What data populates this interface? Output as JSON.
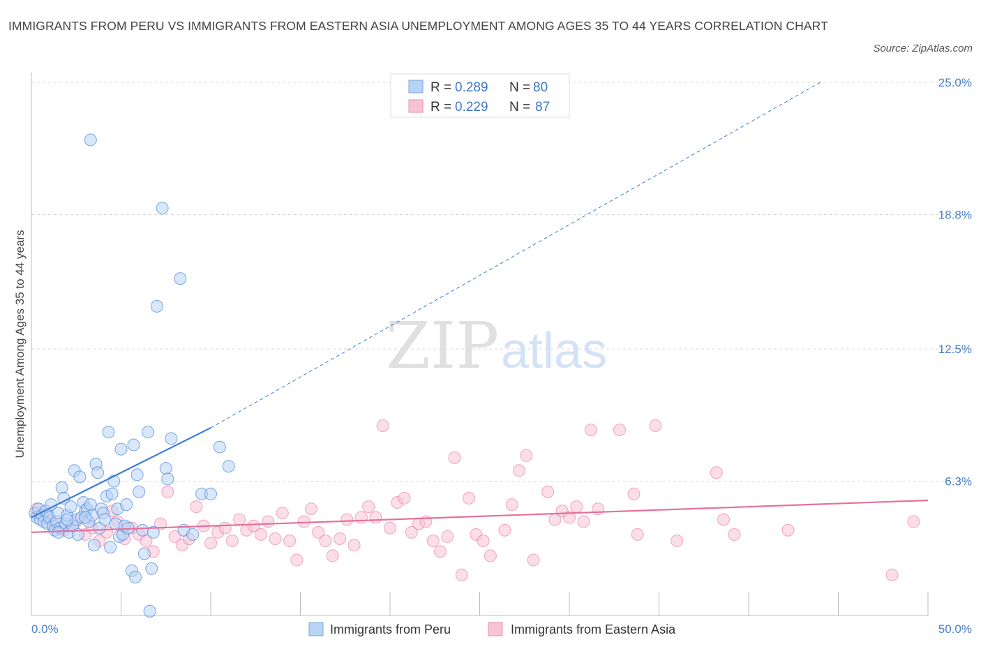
{
  "title": "IMMIGRANTS FROM PERU VS IMMIGRANTS FROM EASTERN ASIA UNEMPLOYMENT AMONG AGES 35 TO 44 YEARS CORRELATION CHART",
  "source": "Source: ZipAtlas.com",
  "watermark": {
    "zip": "ZIP",
    "atlas": "atlas"
  },
  "colors": {
    "peru": "#3a7bd5",
    "peru_fill": "#b9d3f5",
    "asia": "#e76f9a",
    "asia_fill": "#f7c2d3",
    "tick": "#4a7fc7",
    "grid": "#d9d9d9"
  },
  "legend": {
    "rows": [
      {
        "r_label": "R = ",
        "r_value": "0.289",
        "n_label": "N = ",
        "n_value": "80"
      },
      {
        "r_label": "R = ",
        "r_value": "0.229",
        "n_label": "N = ",
        "n_value": "87"
      }
    ]
  },
  "chart_data": {
    "type": "scatter",
    "title": "IMMIGRANTS FROM PERU VS IMMIGRANTS FROM EASTERN ASIA UNEMPLOYMENT AMONG AGES 35 TO 44 YEARS CORRELATION CHART",
    "xlabel": "",
    "ylabel": "Unemployment Among Ages 35 to 44 years",
    "xlim": [
      0,
      50
    ],
    "ylim": [
      0,
      25
    ],
    "x_tick_labels": [
      "0.0%",
      "50.0%"
    ],
    "y_ticks": [
      6.3,
      12.5,
      18.8,
      25.0
    ],
    "y_tick_labels": [
      "6.3%",
      "12.5%",
      "18.8%",
      "25.0%"
    ],
    "grid": "horizontal dashed",
    "legend_position": "top-center",
    "series": [
      {
        "name": "Immigrants from Peru",
        "r": 0.289,
        "n": 80,
        "trend": {
          "x": [
            0,
            10
          ],
          "y": [
            4.6,
            8.8
          ],
          "extended_x": [
            10,
            44
          ],
          "extended_y": [
            8.8,
            25
          ]
        },
        "points": [
          [
            0.2,
            4.8
          ],
          [
            0.3,
            4.6
          ],
          [
            0.4,
            5.0
          ],
          [
            0.5,
            4.5
          ],
          [
            0.6,
            4.7
          ],
          [
            0.7,
            4.4
          ],
          [
            0.8,
            4.9
          ],
          [
            0.9,
            4.3
          ],
          [
            1.0,
            4.6
          ],
          [
            1.1,
            5.2
          ],
          [
            1.2,
            4.2
          ],
          [
            1.3,
            4.0
          ],
          [
            1.4,
            4.4
          ],
          [
            1.5,
            4.8
          ],
          [
            1.6,
            4.1
          ],
          [
            1.7,
            6.0
          ],
          [
            1.8,
            5.5
          ],
          [
            1.9,
            4.3
          ],
          [
            2.0,
            4.7
          ],
          [
            2.1,
            3.9
          ],
          [
            2.2,
            5.1
          ],
          [
            2.3,
            4.2
          ],
          [
            2.4,
            6.8
          ],
          [
            2.5,
            4.5
          ],
          [
            2.6,
            3.8
          ],
          [
            2.7,
            6.5
          ],
          [
            2.8,
            4.6
          ],
          [
            2.9,
            5.3
          ],
          [
            3.0,
            4.9
          ],
          [
            3.1,
            5.0
          ],
          [
            3.2,
            4.4
          ],
          [
            3.3,
            5.2
          ],
          [
            3.4,
            4.7
          ],
          [
            3.5,
            3.3
          ],
          [
            3.6,
            7.1
          ],
          [
            3.7,
            6.7
          ],
          [
            3.8,
            4.1
          ],
          [
            3.9,
            5.0
          ],
          [
            4.0,
            4.8
          ],
          [
            4.1,
            4.5
          ],
          [
            4.2,
            5.6
          ],
          [
            4.3,
            8.6
          ],
          [
            4.4,
            3.2
          ],
          [
            4.5,
            5.7
          ],
          [
            4.6,
            6.3
          ],
          [
            4.7,
            4.3
          ],
          [
            4.8,
            5.0
          ],
          [
            4.9,
            3.7
          ],
          [
            5.0,
            7.8
          ],
          [
            5.1,
            3.8
          ],
          [
            5.2,
            4.2
          ],
          [
            5.3,
            5.2
          ],
          [
            5.4,
            4.1
          ],
          [
            5.6,
            2.1
          ],
          [
            5.7,
            8.0
          ],
          [
            5.8,
            1.8
          ],
          [
            5.9,
            6.6
          ],
          [
            6.0,
            5.8
          ],
          [
            6.2,
            4.0
          ],
          [
            6.3,
            2.9
          ],
          [
            6.5,
            8.6
          ],
          [
            6.7,
            2.2
          ],
          [
            6.8,
            3.9
          ],
          [
            7.0,
            14.5
          ],
          [
            7.3,
            19.1
          ],
          [
            7.5,
            6.9
          ],
          [
            7.6,
            6.4
          ],
          [
            7.8,
            8.3
          ],
          [
            8.3,
            15.8
          ],
          [
            8.5,
            4.0
          ],
          [
            9.0,
            3.8
          ],
          [
            9.5,
            5.7
          ],
          [
            10.0,
            5.7
          ],
          [
            10.5,
            7.9
          ],
          [
            11.0,
            7.0
          ],
          [
            3.3,
            22.3
          ],
          [
            6.6,
            0.2
          ],
          [
            1.5,
            3.9
          ],
          [
            2.0,
            4.5
          ],
          [
            3.0,
            4.6
          ]
        ]
      },
      {
        "name": "Immigrants from Eastern Asia",
        "r": 0.229,
        "n": 87,
        "trend": {
          "x": [
            0,
            50
          ],
          "y": [
            3.9,
            5.4
          ]
        },
        "points": [
          [
            0.3,
            5.0
          ],
          [
            0.8,
            4.6
          ],
          [
            1.2,
            4.3
          ],
          [
            1.8,
            4.0
          ],
          [
            2.5,
            4.4
          ],
          [
            3.0,
            3.8
          ],
          [
            3.4,
            4.1
          ],
          [
            3.8,
            3.5
          ],
          [
            4.2,
            3.9
          ],
          [
            4.5,
            4.9
          ],
          [
            4.8,
            4.4
          ],
          [
            5.2,
            3.6
          ],
          [
            5.6,
            4.1
          ],
          [
            6.0,
            3.8
          ],
          [
            6.4,
            3.5
          ],
          [
            6.8,
            3.0
          ],
          [
            7.2,
            4.3
          ],
          [
            7.6,
            5.8
          ],
          [
            8.0,
            3.7
          ],
          [
            8.4,
            3.3
          ],
          [
            8.8,
            3.6
          ],
          [
            9.2,
            5.1
          ],
          [
            9.6,
            4.2
          ],
          [
            10.0,
            3.4
          ],
          [
            10.4,
            3.9
          ],
          [
            10.8,
            4.1
          ],
          [
            11.2,
            3.5
          ],
          [
            11.6,
            4.5
          ],
          [
            12.0,
            4.0
          ],
          [
            12.4,
            4.2
          ],
          [
            12.8,
            3.8
          ],
          [
            13.2,
            4.4
          ],
          [
            13.6,
            3.6
          ],
          [
            14.0,
            4.8
          ],
          [
            14.4,
            3.5
          ],
          [
            14.8,
            2.6
          ],
          [
            15.2,
            4.4
          ],
          [
            15.6,
            5.0
          ],
          [
            16.0,
            3.9
          ],
          [
            16.4,
            3.5
          ],
          [
            16.8,
            2.8
          ],
          [
            17.2,
            3.6
          ],
          [
            17.6,
            4.5
          ],
          [
            18.0,
            3.3
          ],
          [
            18.4,
            4.6
          ],
          [
            18.8,
            5.1
          ],
          [
            19.2,
            4.6
          ],
          [
            19.6,
            8.9
          ],
          [
            20.0,
            4.1
          ],
          [
            20.4,
            5.3
          ],
          [
            20.8,
            5.5
          ],
          [
            21.2,
            3.9
          ],
          [
            21.6,
            4.3
          ],
          [
            22.0,
            4.4
          ],
          [
            22.4,
            3.5
          ],
          [
            22.8,
            3.0
          ],
          [
            23.2,
            3.7
          ],
          [
            23.6,
            7.4
          ],
          [
            24.0,
            1.9
          ],
          [
            24.4,
            5.5
          ],
          [
            24.8,
            3.8
          ],
          [
            25.2,
            3.5
          ],
          [
            25.6,
            2.8
          ],
          [
            26.4,
            4.0
          ],
          [
            26.8,
            5.2
          ],
          [
            27.2,
            6.8
          ],
          [
            27.6,
            7.5
          ],
          [
            28.0,
            2.6
          ],
          [
            28.8,
            5.8
          ],
          [
            29.2,
            4.5
          ],
          [
            29.6,
            4.9
          ],
          [
            30.0,
            4.6
          ],
          [
            30.4,
            5.1
          ],
          [
            30.8,
            4.4
          ],
          [
            31.2,
            8.7
          ],
          [
            31.6,
            5.0
          ],
          [
            32.8,
            8.7
          ],
          [
            33.6,
            5.7
          ],
          [
            33.8,
            3.8
          ],
          [
            34.8,
            8.9
          ],
          [
            36.0,
            3.5
          ],
          [
            38.2,
            6.7
          ],
          [
            38.6,
            4.5
          ],
          [
            39.2,
            3.8
          ],
          [
            42.2,
            4.0
          ],
          [
            48.0,
            1.9
          ],
          [
            49.2,
            4.4
          ]
        ]
      }
    ]
  },
  "bottom_legend": [
    {
      "label": "Immigrants from Peru"
    },
    {
      "label": "Immigrants from Eastern Asia"
    }
  ]
}
